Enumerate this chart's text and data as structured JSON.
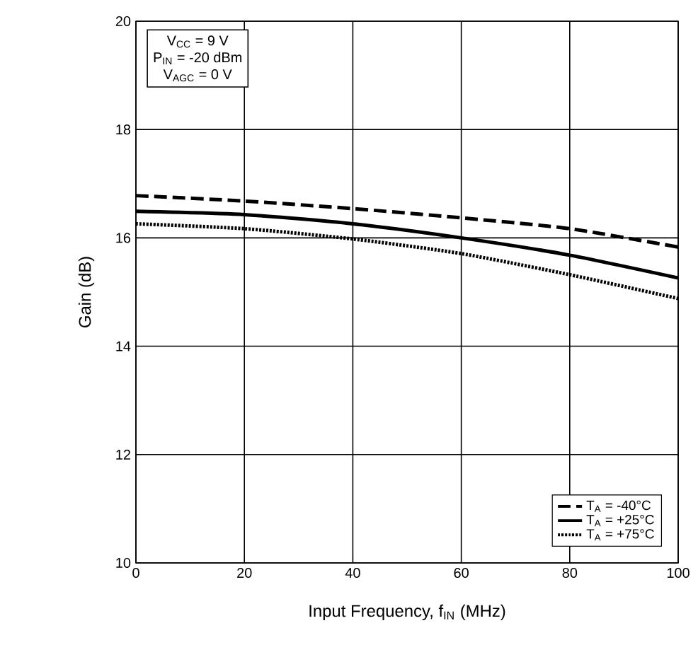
{
  "chart_data": {
    "type": "line",
    "xlabel": "Input Frequency, f$_{IN}$ (MHz)",
    "ylabel": "Gain (dB)",
    "x": [
      0,
      20,
      40,
      60,
      80,
      100
    ],
    "series": [
      {
        "name": "T$_{A}$ = -40°C",
        "color": "#000000",
        "line_style": "dashed",
        "values": [
          16.78,
          16.68,
          16.54,
          16.37,
          16.17,
          15.83
        ]
      },
      {
        "name": "T$_{A}$ = +25°C",
        "color": "#000000",
        "line_style": "solid",
        "values": [
          16.49,
          16.43,
          16.26,
          16.0,
          15.68,
          15.26
        ]
      },
      {
        "name": "T$_{A}$ = +75°C",
        "color": "#000000",
        "line_style": "dotted",
        "values": [
          16.26,
          16.17,
          15.98,
          15.71,
          15.32,
          14.88
        ]
      }
    ],
    "annotations": [
      "V$_{CC}$ = 9 V",
      "P$_{IN}$ = -20 dBm",
      "V$_{AGC}$ = 0 V"
    ],
    "xlim": [
      0,
      100
    ],
    "xticks": [
      0,
      20,
      40,
      60,
      80,
      100
    ],
    "ylim": [
      10,
      20
    ],
    "yticks": [
      10,
      12,
      14,
      16,
      18,
      20
    ],
    "grid": true,
    "legend": "bottom right"
  }
}
